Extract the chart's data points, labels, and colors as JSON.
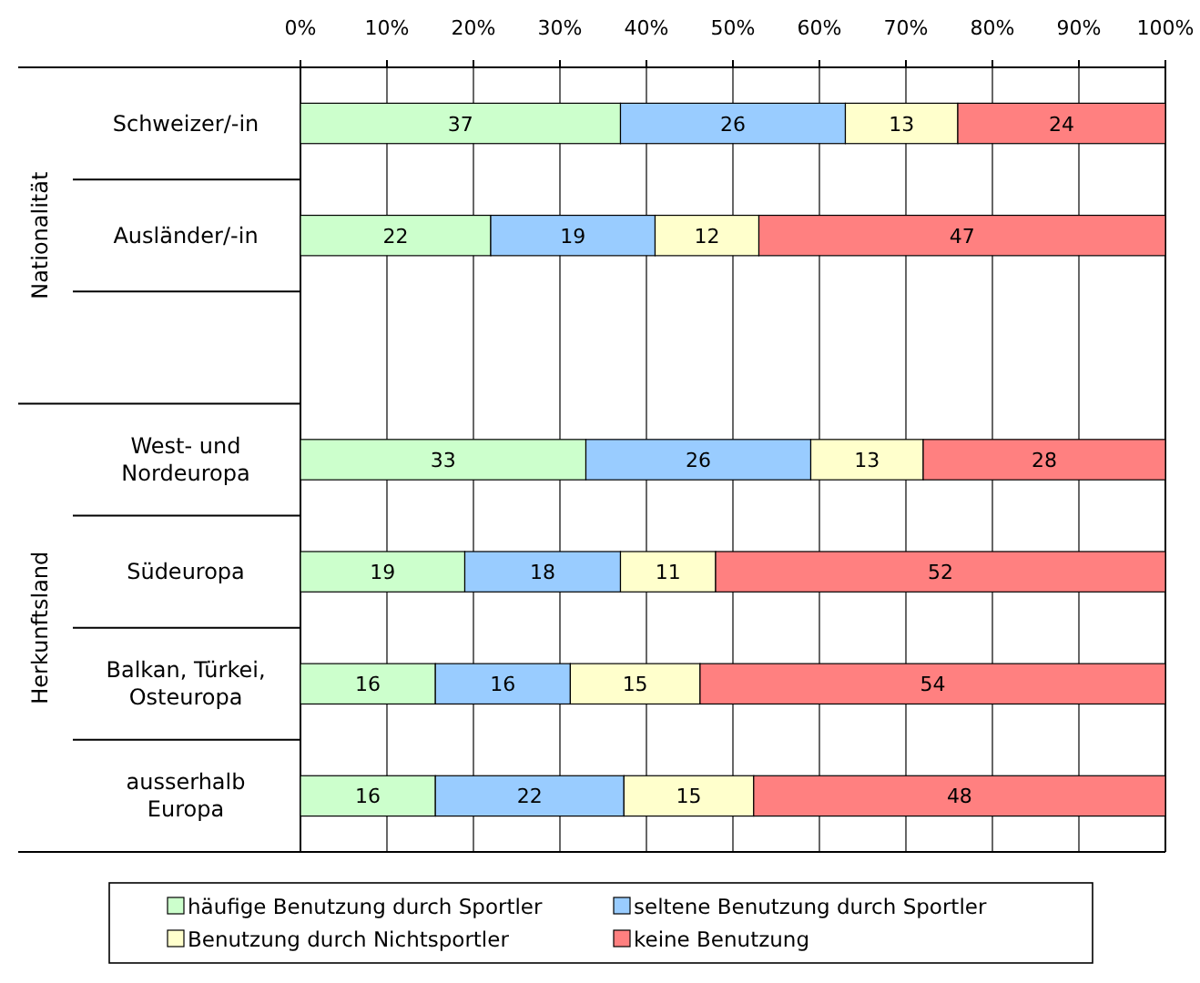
{
  "chart_data": {
    "type": "bar",
    "orientation": "horizontal",
    "stacked": true,
    "categories": [
      "Schweizer/-in",
      "Ausländer/-in",
      null,
      "West- und Nordeuropa",
      "Südeuropa",
      "Balkan, Türkei, Osteuropa",
      "ausserhalb Europa"
    ],
    "series": [
      {
        "name": "häufige Benutzung durch Sportler",
        "color": "#ccffcc",
        "values": [
          37,
          22,
          null,
          33,
          19,
          15.6,
          15.6
        ],
        "value_labels": [
          "37",
          "22",
          null,
          "33",
          "19",
          "16",
          "16"
        ]
      },
      {
        "name": "seltene Benutzung durch Sportler",
        "color": "#99ccff",
        "values": [
          26,
          19,
          null,
          26,
          18,
          15.6,
          21.8
        ],
        "value_labels": [
          "26",
          "19",
          null,
          "26",
          "18",
          "16",
          "22"
        ]
      },
      {
        "name": "Benutzung durch Nichtsportler",
        "color": "#ffffcc",
        "values": [
          13,
          12,
          null,
          13,
          11,
          15,
          15
        ],
        "value_labels": [
          "13",
          "12",
          null,
          "13",
          "11",
          "15",
          "15"
        ]
      },
      {
        "name": "keine Benutzung",
        "color": "#ff8080",
        "values": [
          24,
          47,
          null,
          28,
          52,
          53.8,
          47.6
        ],
        "value_labels": [
          "24",
          "47",
          null,
          "28",
          "52",
          "54",
          "48"
        ]
      }
    ],
    "xlim": [
      0,
      100
    ],
    "xticks": [
      {
        "value": 0,
        "label": "0%"
      },
      {
        "value": 10,
        "label": "10%"
      },
      {
        "value": 20,
        "label": "20%"
      },
      {
        "value": 30,
        "label": "30%"
      },
      {
        "value": 40,
        "label": "40%"
      },
      {
        "value": 50,
        "label": "50%"
      },
      {
        "value": 60,
        "label": "60%"
      },
      {
        "value": 70,
        "label": "70%"
      },
      {
        "value": 80,
        "label": "80%"
      },
      {
        "value": 90,
        "label": "90%"
      },
      {
        "value": 100,
        "label": "100%"
      }
    ],
    "grid": "x",
    "legend": "bottom",
    "annotations": [
      "Nationalität",
      "Herkunftsland"
    ]
  }
}
